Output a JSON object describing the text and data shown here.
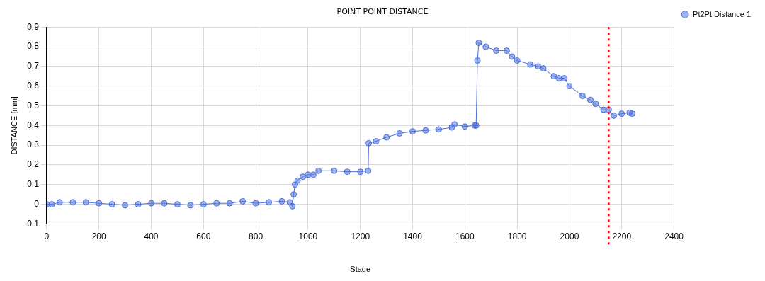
{
  "chart_data": {
    "type": "line",
    "title": "POINT POINT DISTANCE",
    "xlabel": "Stage",
    "ylabel": "DISTANCE [mm]",
    "x": [
      0,
      20,
      50,
      100,
      150,
      200,
      250,
      300,
      350,
      400,
      450,
      500,
      550,
      600,
      650,
      700,
      750,
      800,
      850,
      900,
      930,
      940,
      945,
      950,
      960,
      980,
      1000,
      1020,
      1040,
      1100,
      1150,
      1200,
      1230,
      1232,
      1260,
      1300,
      1350,
      1400,
      1450,
      1500,
      1550,
      1560,
      1600,
      1638,
      1643,
      1648,
      1653,
      1680,
      1720,
      1760,
      1780,
      1800,
      1850,
      1880,
      1900,
      1940,
      1960,
      1980,
      2000,
      2050,
      2080,
      2100,
      2130,
      2150,
      2170,
      2200,
      2230,
      2240
    ],
    "series": [
      {
        "name": "Pt2Pt Distance 1",
        "color": "#4a6fdc",
        "values": [
          0,
          0,
          0.01,
          0.01,
          0.01,
          0.005,
          0,
          -0.005,
          0,
          0.005,
          0.005,
          0,
          -0.005,
          0,
          0.005,
          0.005,
          0.015,
          0.005,
          0.01,
          0.015,
          0.01,
          -0.01,
          0.05,
          0.1,
          0.12,
          0.14,
          0.15,
          0.15,
          0.17,
          0.17,
          0.165,
          0.165,
          0.17,
          0.31,
          0.32,
          0.34,
          0.36,
          0.37,
          0.375,
          0.38,
          0.39,
          0.405,
          0.395,
          0.4,
          0.4,
          0.73,
          0.82,
          0.8,
          0.78,
          0.78,
          0.75,
          0.73,
          0.71,
          0.7,
          0.69,
          0.65,
          0.64,
          0.64,
          0.6,
          0.55,
          0.53,
          0.51,
          0.48,
          0.48,
          0.45,
          0.46,
          0.465,
          0.46
        ]
      }
    ],
    "xlim": [
      0,
      2400
    ],
    "xticks": [
      0,
      200,
      400,
      600,
      800,
      1000,
      1200,
      1400,
      1600,
      1800,
      2000,
      2200,
      2400
    ],
    "ylim": [
      -0.1,
      0.9
    ],
    "yticks": [
      -0.1,
      0,
      0.1,
      0.2,
      0.3,
      0.4,
      0.5,
      0.6,
      0.7,
      0.8,
      0.9
    ],
    "ref_lines": [
      {
        "axis": "x",
        "value": 2150,
        "color": "#ff0000",
        "line_style": "dotted"
      }
    ],
    "grid": true,
    "legend": "top right",
    "marker": "circle",
    "line_style": "solid"
  }
}
